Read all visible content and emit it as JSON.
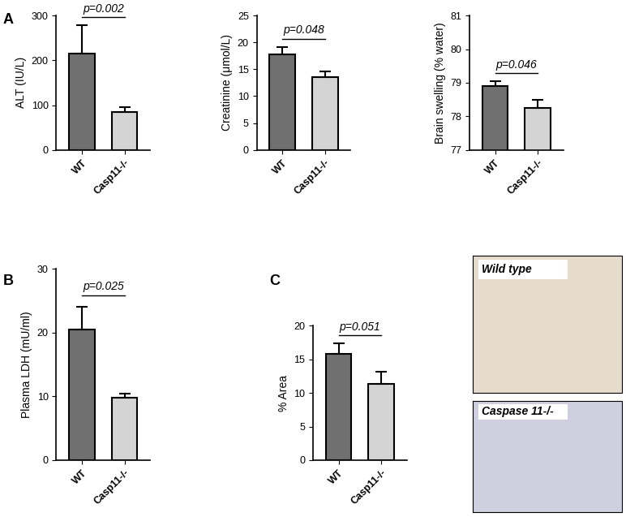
{
  "chart_data": [
    {
      "type": "bar",
      "panel_label": "A",
      "categories": [
        "WT",
        "Casp11-/-"
      ],
      "values": [
        215,
        85
      ],
      "errors": [
        63,
        10
      ],
      "colors": [
        "#707070",
        "#d4d4d4"
      ],
      "y_label": "ALT (IU/L)",
      "ylim": [
        0,
        300
      ],
      "yticks": [
        0,
        100,
        200,
        300
      ],
      "annotations": [
        "p=0.002"
      ]
    },
    {
      "type": "bar",
      "categories": [
        "WT",
        "Casp11-/-"
      ],
      "values": [
        17.7,
        13.6
      ],
      "errors": [
        1.5,
        1.0
      ],
      "colors": [
        "#707070",
        "#d4d4d4"
      ],
      "y_label": "Creatinine (μmol/L)",
      "ylim": [
        0,
        25
      ],
      "yticks": [
        0,
        5,
        10,
        15,
        20,
        25
      ],
      "annotations": [
        "p=0.048"
      ]
    },
    {
      "type": "bar",
      "categories": [
        "WT",
        "Casp11-/-"
      ],
      "values": [
        78.9,
        78.25
      ],
      "errors": [
        0.15,
        0.23
      ],
      "colors": [
        "#707070",
        "#d4d4d4"
      ],
      "y_label": "Brain swelling (% water)",
      "ylim": [
        77,
        81
      ],
      "yticks": [
        77,
        78,
        79,
        80,
        81
      ],
      "annotations": [
        "p=0.046"
      ]
    },
    {
      "type": "bar",
      "panel_label": "B",
      "categories": [
        "WT",
        "Casp11-/-"
      ],
      "values": [
        20.5,
        9.8
      ],
      "errors": [
        3.5,
        0.6
      ],
      "colors": [
        "#707070",
        "#d4d4d4"
      ],
      "y_label": "Plasma LDH (mU/ml)",
      "ylim": [
        0,
        30
      ],
      "yticks": [
        0,
        10,
        20,
        30
      ],
      "annotations": [
        "p=0.025"
      ]
    },
    {
      "type": "bar",
      "panel_label": "C",
      "categories": [
        "WT",
        "Casp11-/-"
      ],
      "values": [
        15.8,
        11.3
      ],
      "errors": [
        1.6,
        1.9
      ],
      "colors": [
        "#707070",
        "#d4d4d4"
      ],
      "y_label": "% Area",
      "ylim": [
        0,
        20
      ],
      "yticks": [
        0,
        5,
        10,
        15,
        20
      ],
      "annotations": [
        "p=0.051"
      ]
    }
  ],
  "images": [
    {
      "label": "Wild type"
    },
    {
      "label": "Caspase 11-/-"
    }
  ]
}
